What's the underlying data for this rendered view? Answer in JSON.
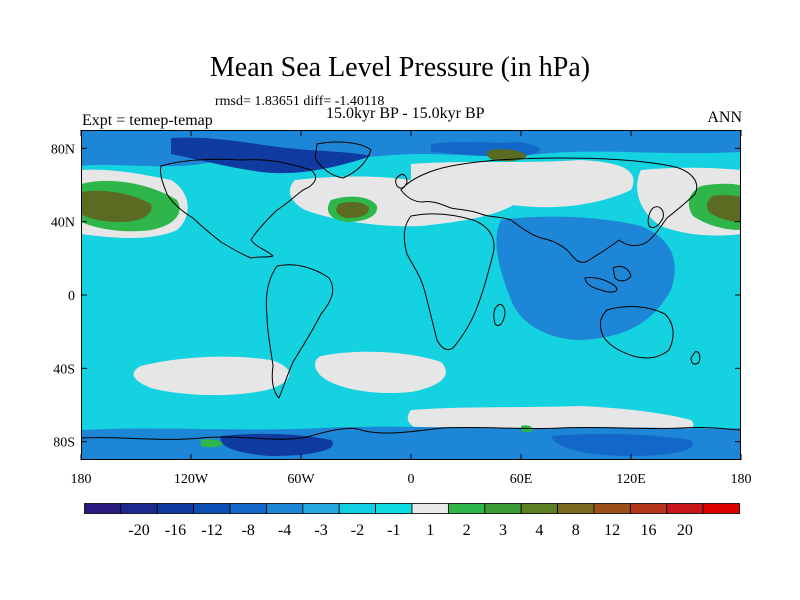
{
  "title": "Mean Sea Level Pressure (in hPa)",
  "stats": "rmsd= 1.83651 diff= -1.40118",
  "subtitle": "15.0kyr BP - 15.0kyr BP",
  "expt": "Expt = temep-temap",
  "season": "ANN",
  "map": {
    "lon_ticks": [
      "180",
      "120W",
      "60W",
      "0",
      "60E",
      "120E",
      "180"
    ],
    "lat_ticks": [
      "80N",
      "40N",
      "0",
      "40S",
      "80S"
    ],
    "lon_values": [
      -180,
      -120,
      -60,
      0,
      60,
      120,
      180
    ],
    "lat_values": [
      80,
      40,
      0,
      -40,
      -80
    ],
    "lat_range": [
      -90,
      90
    ],
    "lon_range": [
      -180,
      180
    ]
  },
  "colorbar": {
    "labels": [
      "-20",
      "-16",
      "-12",
      "-8",
      "-4",
      "-3",
      "-2",
      "-1",
      "1",
      "2",
      "3",
      "4",
      "8",
      "12",
      "16",
      "20"
    ],
    "colors": [
      "#2a1a7e",
      "#1c2a8e",
      "#0f3aa0",
      "#0c4fb4",
      "#1267c8",
      "#1e86d6",
      "#25a6dd",
      "#11d0e3",
      "#0fdce0",
      "#e8e8e8",
      "#2eb64a",
      "#3c9a35",
      "#5b7f22",
      "#7a6b1f",
      "#9b4f1a",
      "#b5351a",
      "#c9141a",
      "#df0000"
    ]
  },
  "colors": {
    "ocean_base": "#15d2e0",
    "ocean_dark": "#1e86d6",
    "neutral": "#e6e6e6",
    "green": "#2eb64a",
    "olive": "#5b6b22",
    "deep": "#0f3aa0"
  }
}
